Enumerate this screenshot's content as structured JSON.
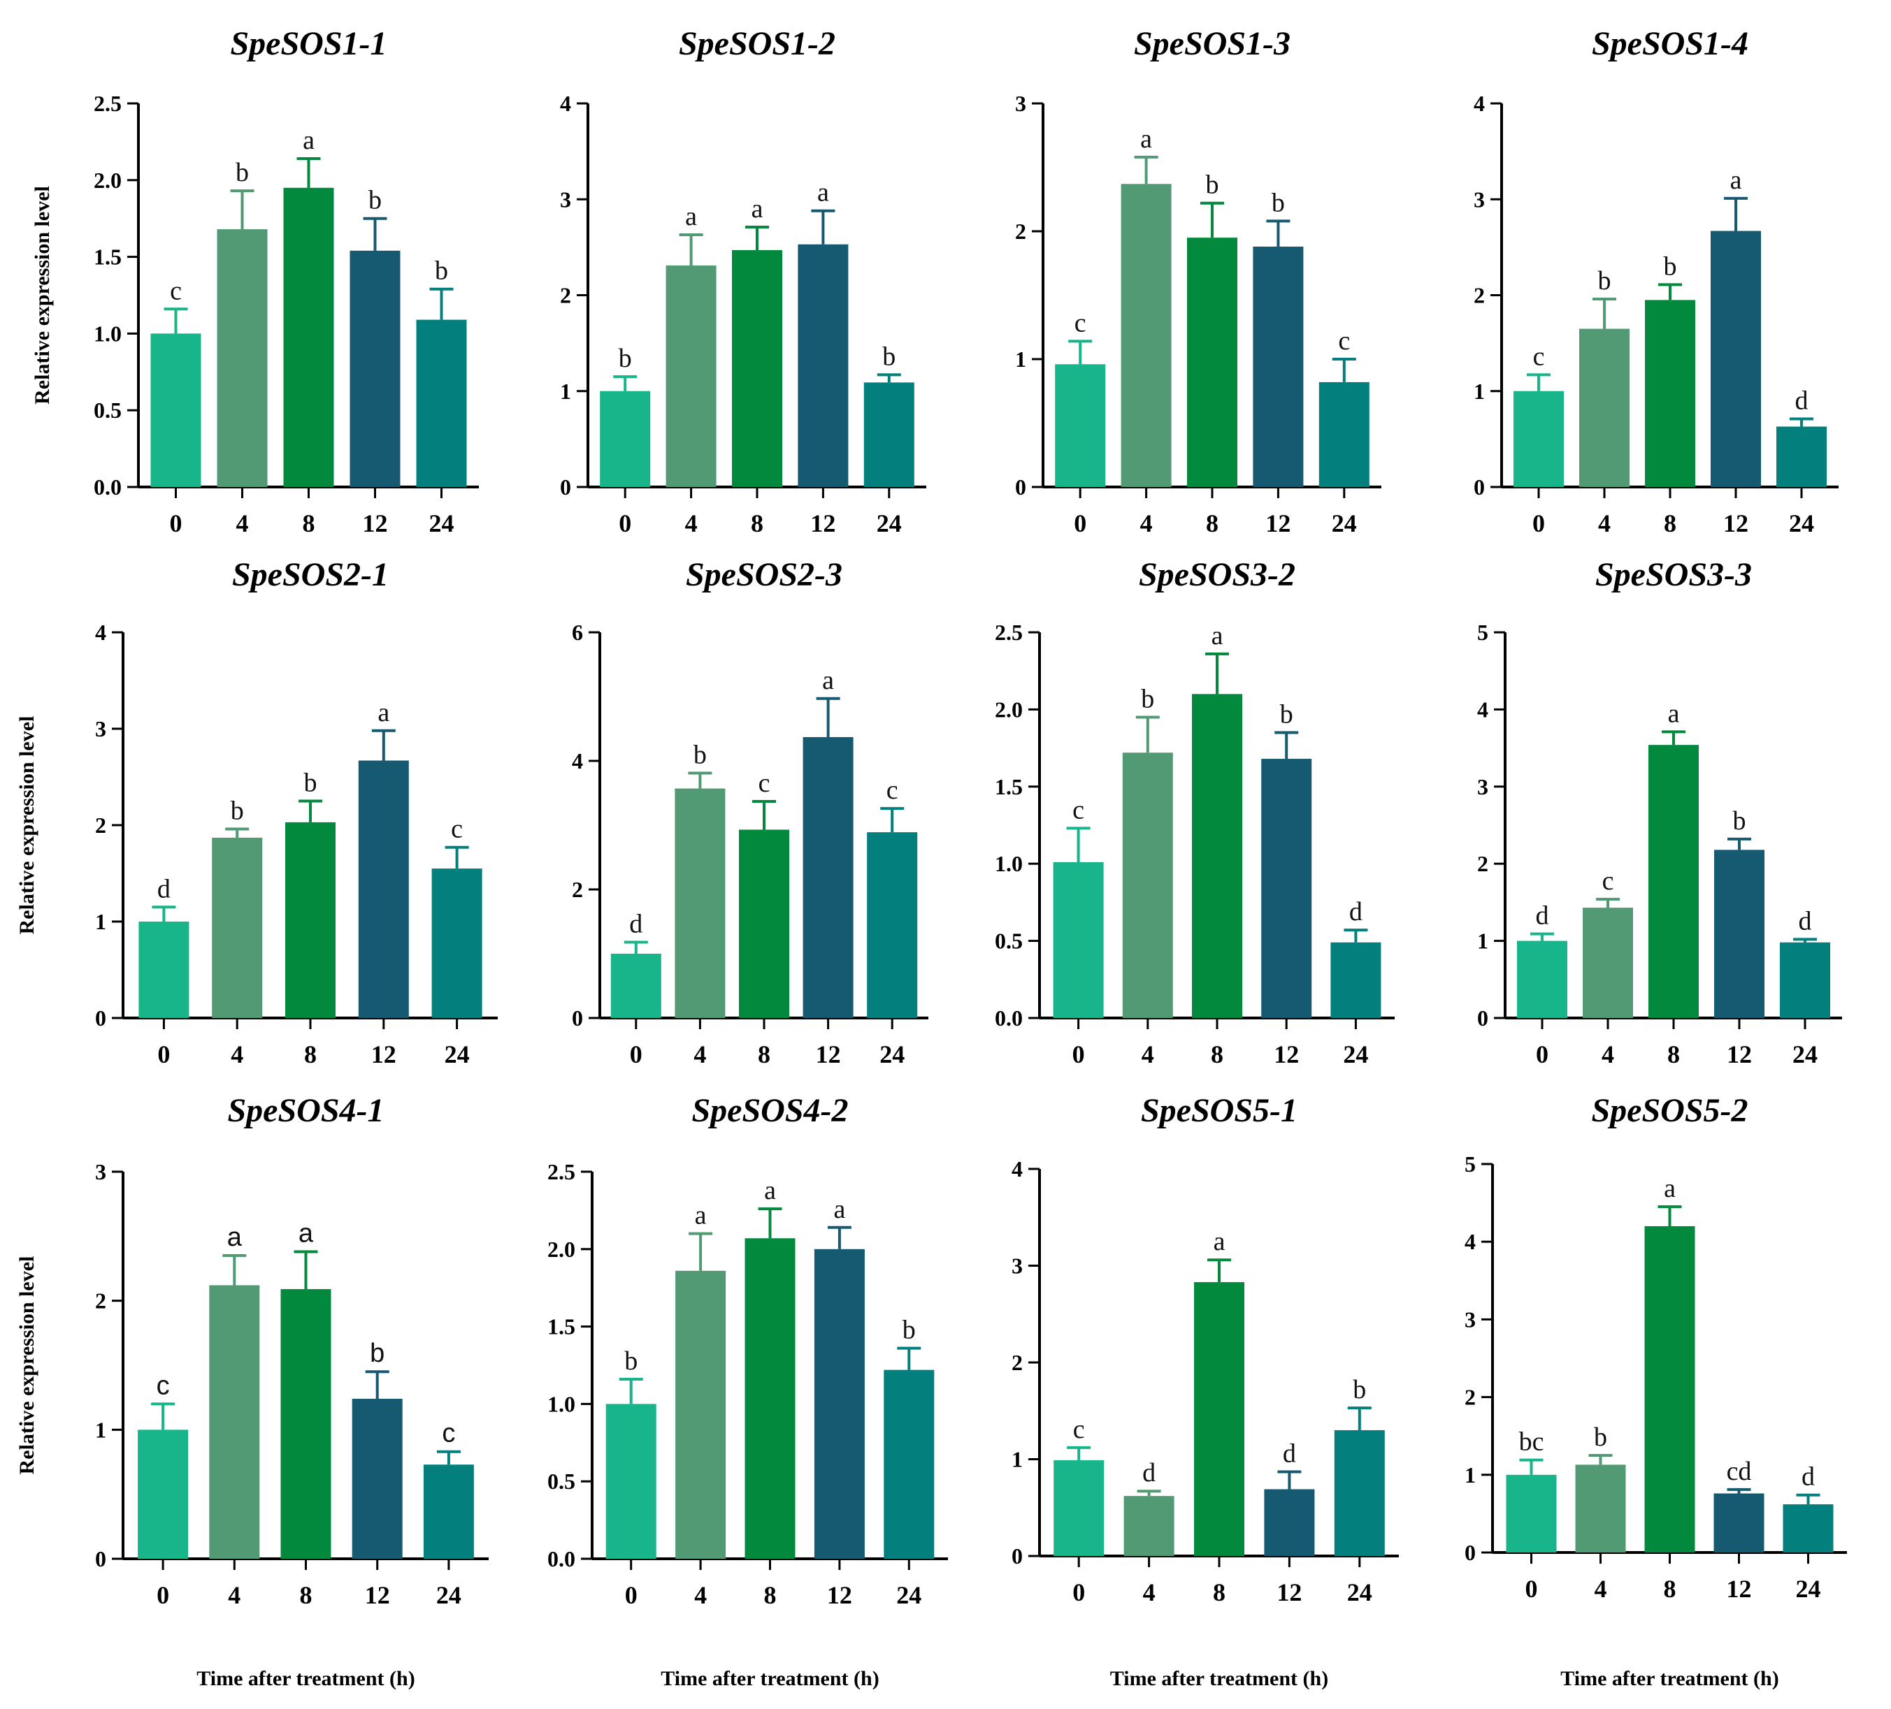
{
  "colors": {
    "bar_0h": "#18b48a",
    "bar_4h": "#519a74",
    "bar_8h": "#02893e",
    "bar_12h": "#165a71",
    "bar_24h": "#03807e",
    "axis": "#000000"
  },
  "chart_data": [
    {
      "type": "bar",
      "title": "SpeSOS1-1",
      "categories": [
        "0",
        "4",
        "8",
        "12",
        "24"
      ],
      "values": [
        1.0,
        1.68,
        1.95,
        1.54,
        1.09
      ],
      "errors": [
        0.16,
        0.25,
        0.19,
        0.21,
        0.2
      ],
      "significance": [
        "c",
        "b",
        "a",
        "b",
        "b"
      ],
      "ylim": [
        0,
        2.5
      ],
      "yticks": [
        "0.0",
        "0.5",
        "1.0",
        "1.5",
        "2.0",
        "2.5"
      ],
      "ylabel": "Relative expression level",
      "xlabel": ""
    },
    {
      "type": "bar",
      "title": "SpeSOS1-2",
      "categories": [
        "0",
        "4",
        "8",
        "12",
        "24"
      ],
      "values": [
        1.0,
        2.31,
        2.47,
        2.53,
        1.09
      ],
      "errors": [
        0.15,
        0.32,
        0.24,
        0.35,
        0.08
      ],
      "significance": [
        "b",
        "a",
        "a",
        "a",
        "b"
      ],
      "ylim": [
        0,
        4
      ],
      "yticks": [
        "0",
        "1",
        "2",
        "3",
        "4"
      ],
      "ylabel": "",
      "xlabel": ""
    },
    {
      "type": "bar",
      "title": "SpeSOS1-3",
      "categories": [
        "0",
        "4",
        "8",
        "12",
        "24"
      ],
      "values": [
        0.96,
        2.37,
        1.95,
        1.88,
        0.82
      ],
      "errors": [
        0.18,
        0.21,
        0.27,
        0.2,
        0.18
      ],
      "significance": [
        "c",
        "a",
        "b",
        "b",
        "c"
      ],
      "ylim": [
        0,
        3
      ],
      "yticks": [
        "0",
        "1",
        "2",
        "3"
      ],
      "ylabel": "",
      "xlabel": ""
    },
    {
      "type": "bar",
      "title": "SpeSOS1-4",
      "categories": [
        "0",
        "4",
        "8",
        "12",
        "24"
      ],
      "values": [
        1.0,
        1.65,
        1.95,
        2.67,
        0.63
      ],
      "errors": [
        0.17,
        0.31,
        0.16,
        0.34,
        0.08
      ],
      "significance": [
        "c",
        "b",
        "b",
        "a",
        "d"
      ],
      "ylim": [
        0,
        4
      ],
      "yticks": [
        "0",
        "1",
        "2",
        "3",
        "4"
      ],
      "ylabel": "",
      "xlabel": ""
    },
    {
      "type": "bar",
      "title": "SpeSOS2-1",
      "categories": [
        "0",
        "4",
        "8",
        "12",
        "24"
      ],
      "values": [
        1.0,
        1.87,
        2.03,
        2.67,
        1.55
      ],
      "errors": [
        0.15,
        0.09,
        0.22,
        0.31,
        0.22
      ],
      "significance": [
        "d",
        "b",
        "b",
        "a",
        "c"
      ],
      "ylim": [
        0,
        4
      ],
      "yticks": [
        "0",
        "1",
        "2",
        "3",
        "4"
      ],
      "ylabel": "Relative expression level",
      "xlabel": ""
    },
    {
      "type": "bar",
      "title": "SpeSOS2-3",
      "categories": [
        "0",
        "4",
        "8",
        "12",
        "24"
      ],
      "values": [
        1.0,
        3.57,
        2.93,
        4.37,
        2.89
      ],
      "errors": [
        0.18,
        0.24,
        0.44,
        0.6,
        0.37
      ],
      "significance": [
        "d",
        "b",
        "c",
        "a",
        "c"
      ],
      "ylim": [
        0,
        6
      ],
      "yticks": [
        "0",
        "2",
        "4",
        "6"
      ],
      "ylabel": "",
      "xlabel": ""
    },
    {
      "type": "bar",
      "title": "SpeSOS3-2",
      "categories": [
        "0",
        "4",
        "8",
        "12",
        "24"
      ],
      "values": [
        1.01,
        1.72,
        2.1,
        1.68,
        0.49
      ],
      "errors": [
        0.22,
        0.23,
        0.26,
        0.17,
        0.08
      ],
      "significance": [
        "c",
        "b",
        "a",
        "b",
        "d"
      ],
      "ylim": [
        0,
        2.5
      ],
      "yticks": [
        "0.0",
        "0.5",
        "1.0",
        "1.5",
        "2.0",
        "2.5"
      ],
      "ylabel": "",
      "xlabel": ""
    },
    {
      "type": "bar",
      "title": "SpeSOS3-3",
      "categories": [
        "0",
        "4",
        "8",
        "12",
        "24"
      ],
      "values": [
        1.0,
        1.43,
        3.54,
        2.18,
        0.98
      ],
      "errors": [
        0.09,
        0.11,
        0.17,
        0.14,
        0.04
      ],
      "significance": [
        "d",
        "c",
        "a",
        "b",
        "d"
      ],
      "ylim": [
        0,
        5
      ],
      "yticks": [
        "0",
        "1",
        "2",
        "3",
        "4",
        "5"
      ],
      "ylabel": "",
      "xlabel": ""
    },
    {
      "type": "bar",
      "title": "SpeSOS4-1",
      "categories": [
        "0",
        "4",
        "8",
        "12",
        "24"
      ],
      "values": [
        1.0,
        2.12,
        2.09,
        1.24,
        0.73
      ],
      "errors": [
        0.2,
        0.23,
        0.29,
        0.21,
        0.1
      ],
      "significance": [
        "c",
        "a",
        "a",
        "b",
        "c"
      ],
      "significance_font": "sans",
      "ylim": [
        0,
        3
      ],
      "yticks": [
        "0",
        "1",
        "2",
        "3"
      ],
      "ylabel": "Relative expression level",
      "xlabel": "Time after treatment (h)"
    },
    {
      "type": "bar",
      "title": "SpeSOS4-2",
      "categories": [
        "0",
        "4",
        "8",
        "12",
        "24"
      ],
      "values": [
        1.0,
        1.86,
        2.07,
        2.0,
        1.22
      ],
      "errors": [
        0.16,
        0.24,
        0.19,
        0.14,
        0.14
      ],
      "significance": [
        "b",
        "a",
        "a",
        "a",
        "b"
      ],
      "ylim": [
        0,
        2.5
      ],
      "yticks": [
        "0.0",
        "0.5",
        "1.0",
        "1.5",
        "2.0",
        "2.5"
      ],
      "ylabel": "",
      "xlabel": "Time after treatment (h)"
    },
    {
      "type": "bar",
      "title": "SpeSOS5-1",
      "categories": [
        "0",
        "4",
        "8",
        "12",
        "24"
      ],
      "values": [
        0.99,
        0.62,
        2.83,
        0.69,
        1.3
      ],
      "errors": [
        0.13,
        0.05,
        0.23,
        0.18,
        0.23
      ],
      "significance": [
        "c",
        "d",
        "a",
        "d",
        "b"
      ],
      "ylim": [
        0,
        4
      ],
      "yticks": [
        "0",
        "1",
        "2",
        "3",
        "4"
      ],
      "ylabel": "",
      "xlabel": "Time after treatment (h)"
    },
    {
      "type": "bar",
      "title": "SpeSOS5-2",
      "categories": [
        "0",
        "4",
        "8",
        "12",
        "24"
      ],
      "values": [
        1.0,
        1.13,
        4.2,
        0.76,
        0.62
      ],
      "errors": [
        0.19,
        0.12,
        0.25,
        0.05,
        0.12
      ],
      "significance": [
        "bc",
        "b",
        "a",
        "cd",
        "d"
      ],
      "ylim": [
        0,
        5
      ],
      "yticks": [
        "0",
        "1",
        "2",
        "3",
        "4",
        "5"
      ],
      "ylabel": "",
      "xlabel": "Time after treatment (h)"
    }
  ]
}
